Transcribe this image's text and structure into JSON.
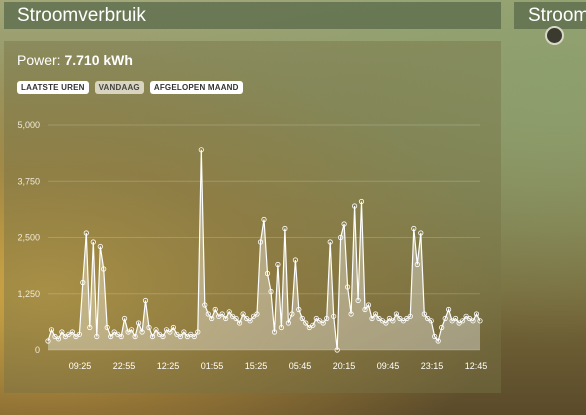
{
  "header": {
    "title": "Stroomverbruik",
    "second_title": "Stroom"
  },
  "power": {
    "label": "Power:",
    "value": "7.710 kWh"
  },
  "range_buttons": [
    {
      "label": "LAATSTE UREN",
      "active": false
    },
    {
      "label": "VANDAAG",
      "active": true
    },
    {
      "label": "AFGELOPEN MAAND",
      "active": false
    }
  ],
  "chart_data": {
    "type": "area",
    "title": "",
    "xlabel": "",
    "ylabel": "",
    "ylim": [
      0,
      5000
    ],
    "y_ticks": [
      "0",
      "1,250",
      "2,500",
      "3,750",
      "5,000"
    ],
    "y_tick_values": [
      0,
      1250,
      2500,
      3750,
      5000
    ],
    "x_ticks": [
      "09:25",
      "22:55",
      "12:25",
      "01:55",
      "15:25",
      "05:45",
      "20:15",
      "09:45",
      "23:15",
      "12:45"
    ],
    "grid": true,
    "series": [
      {
        "values": [
          200,
          450,
          300,
          250,
          400,
          300,
          350,
          400,
          300,
          350,
          1500,
          2600,
          500,
          2400,
          300,
          2300,
          1800,
          500,
          300,
          400,
          350,
          300,
          700,
          400,
          450,
          300,
          600,
          400,
          1100,
          500,
          300,
          450,
          350,
          300,
          450,
          400,
          500,
          350,
          300,
          400,
          300,
          350,
          300,
          400,
          4450,
          1000,
          800,
          700,
          900,
          750,
          800,
          700,
          850,
          750,
          700,
          600,
          800,
          700,
          650,
          750,
          800,
          2400,
          2900,
          1700,
          1300,
          400,
          1900,
          500,
          2700,
          600,
          800,
          2000,
          900,
          700,
          600,
          500,
          550,
          700,
          650,
          600,
          700,
          2400,
          750,
          0,
          2500,
          2800,
          1400,
          800,
          3200,
          1100,
          3300,
          900,
          1000,
          700,
          800,
          700,
          650,
          600,
          700,
          650,
          800,
          700,
          650,
          700,
          750,
          2700,
          1900,
          2600,
          800,
          700,
          650,
          300,
          200,
          500,
          700,
          900,
          650,
          700,
          600,
          650,
          750,
          700,
          650,
          800,
          650
        ]
      }
    ]
  }
}
